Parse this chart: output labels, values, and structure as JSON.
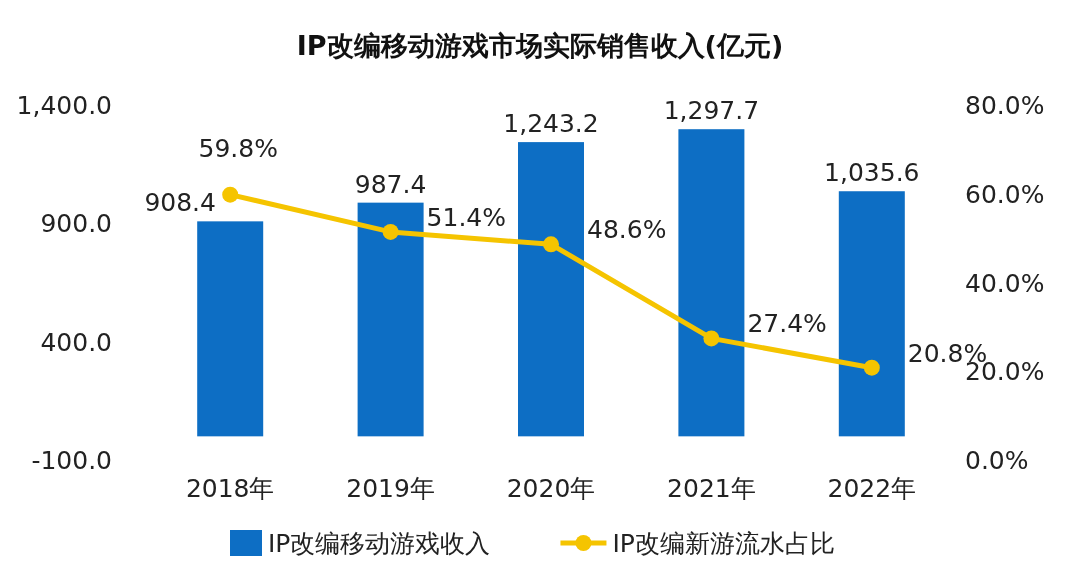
{
  "chart_data": {
    "type": "bar",
    "title": "IP改编移动游戏市场实际销售收入(亿元)",
    "categories": [
      "2018年",
      "2019年",
      "2020年",
      "2021年",
      "2022年"
    ],
    "series": [
      {
        "name": "IP改编移动游戏收入",
        "color": "#0d6ec4",
        "values": [
          908.4,
          987.4,
          1243.2,
          1297.7,
          1035.6
        ],
        "value_labels": [
          "908.4",
          "987.4",
          "1,243.2",
          "1,297.7",
          "1,035.6"
        ]
      },
      {
        "name": "IP改编新游流水占比",
        "type": "line",
        "axis": "y2",
        "color": "#f5c400",
        "marker": "circle",
        "values": [
          59.8,
          51.4,
          48.6,
          27.4,
          20.8
        ],
        "value_labels": [
          "59.8%",
          "51.4%",
          "48.6%",
          "27.4%",
          "20.8%"
        ]
      }
    ],
    "ylim": [
      -100,
      1400
    ],
    "yticks": [
      {
        "value": -100,
        "label": "-100.0"
      },
      {
        "value": 400,
        "label": "400.0"
      },
      {
        "value": 900,
        "label": "900.0"
      },
      {
        "value": 1400,
        "label": "1,400.0"
      }
    ],
    "y2lim": [
      0,
      80
    ],
    "y2ticks": [
      {
        "value": 0,
        "label": "0.0%"
      },
      {
        "value": 20,
        "label": "20.0%"
      },
      {
        "value": 40,
        "label": "40.0%"
      },
      {
        "value": 60,
        "label": "60.0%"
      },
      {
        "value": 80,
        "label": "80.0%"
      }
    ],
    "legend": "bottom",
    "grid": false
  }
}
